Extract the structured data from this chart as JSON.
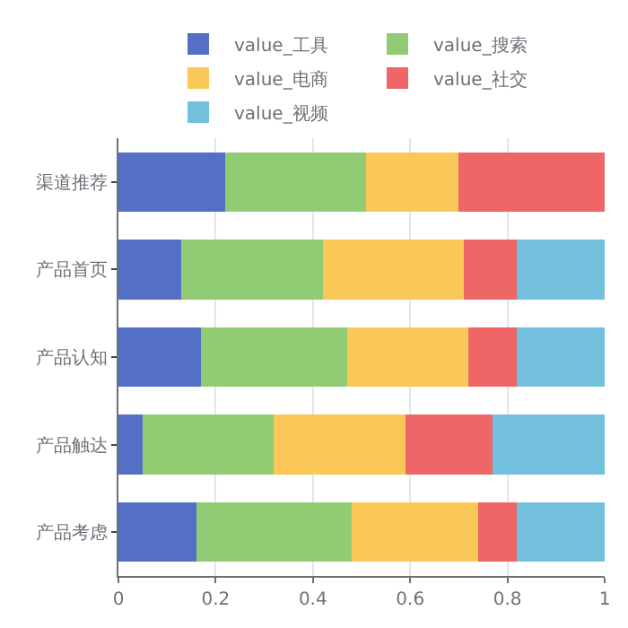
{
  "chart_data": {
    "type": "bar",
    "orientation": "horizontal",
    "stacked": true,
    "categories": [
      "渠道推荐",
      "产品首页",
      "产品认知",
      "产品触达",
      "产品考虑"
    ],
    "series": [
      {
        "name": "value_工具",
        "color": "#5470c6",
        "values": [
          0.22,
          0.13,
          0.17,
          0.05,
          0.16
        ]
      },
      {
        "name": "value_搜索",
        "color": "#91cc75",
        "values": [
          0.29,
          0.29,
          0.3,
          0.27,
          0.32
        ]
      },
      {
        "name": "value_电商",
        "color": "#fac858",
        "values": [
          0.19,
          0.29,
          0.25,
          0.27,
          0.26
        ]
      },
      {
        "name": "value_社交",
        "color": "#ee6666",
        "values": [
          0.3,
          0.11,
          0.1,
          0.18,
          0.08
        ]
      },
      {
        "name": "value_视频",
        "color": "#73c0de",
        "values": [
          0,
          0.18,
          0.18,
          0.23,
          0.18
        ]
      }
    ],
    "xlim": [
      0,
      1
    ],
    "xticks": [
      0,
      0.2,
      0.4,
      0.6,
      0.8,
      1
    ],
    "grid": "x",
    "legend": "top"
  }
}
